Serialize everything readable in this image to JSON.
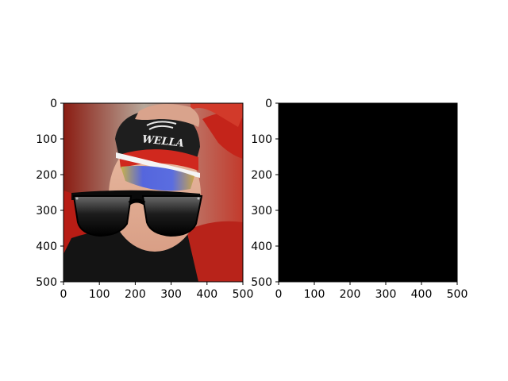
{
  "colors": {
    "background": "#ffffff",
    "axis": "#000000",
    "right_panel_fill": "#000000"
  },
  "chart_data": [
    {
      "type": "image",
      "content": "photo of a person in a red cap with a black headband and goggles, with cartoon black sunglasses overlaid",
      "xlim": [
        0,
        500
      ],
      "ylim": [
        500,
        0
      ],
      "xticks": [
        0,
        100,
        200,
        300,
        400,
        500
      ],
      "yticks": [
        0,
        100,
        200,
        300,
        400,
        500
      ],
      "cap_text": "WELLA"
    },
    {
      "type": "image",
      "content": "all-black image",
      "xlim": [
        0,
        500
      ],
      "ylim": [
        500,
        0
      ],
      "xticks": [
        0,
        100,
        200,
        300,
        400,
        500
      ],
      "yticks": [
        0,
        100,
        200,
        300,
        400,
        500
      ]
    }
  ]
}
